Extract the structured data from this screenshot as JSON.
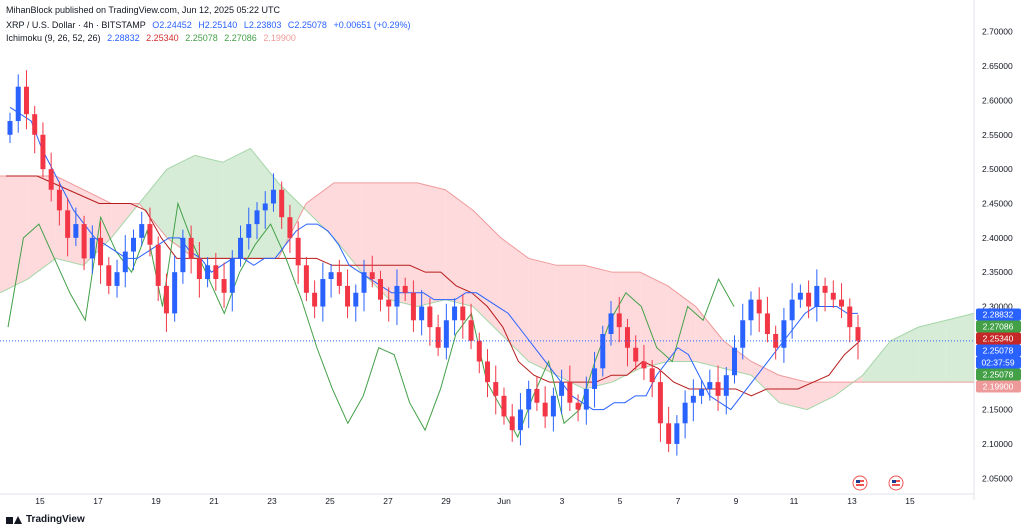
{
  "header": {
    "publisher_line": "MihanBlock published on TradingView.com, Jun 12, 2025 05:22 UTC"
  },
  "legend": {
    "symbol": "XRP / U.S. Dollar · 4h · BITSTAMP",
    "open": "O2.24452",
    "high": "H2.25140",
    "low": "L2.23803",
    "close": "C2.25078",
    "change": "+0.00651 (+0.29%)",
    "indicator": "Ichimoku (9, 26, 52, 26)",
    "ind_values": [
      "2.28832",
      "2.25340",
      "2.25078",
      "2.27086",
      "2.19900"
    ]
  },
  "footer": {
    "brand": "TradingView"
  },
  "colors": {
    "up": "#089981",
    "down": "#f23645",
    "tenkan": "#2962ff",
    "kijun": "#b71c1c",
    "chikou": "#43a047",
    "span_a": "#a5d6a7",
    "span_b": "#ef9a9a",
    "cloud_green": "#c8e6c9",
    "cloud_red": "#ffcdd2",
    "candle_red": "#f23645",
    "candle_blue": "#2962ff"
  },
  "price_labels": [
    {
      "value": 2.28832,
      "text": "2.28832",
      "color": "#2962ff"
    },
    {
      "value": 2.27086,
      "text": "2.27086",
      "color": "#43a047"
    },
    {
      "value": 2.2534,
      "text": "2.25340",
      "color": "#c62828"
    },
    {
      "value": 2.25078,
      "text": "2.25078",
      "color": "#2962ff"
    },
    {
      "value": 2.25078,
      "text": "02:37:59",
      "color": "#2962ff"
    },
    {
      "value": 2.25078,
      "text": "2.25078",
      "color": "#43a047"
    },
    {
      "value": 2.199,
      "text": "2.19900",
      "color": "#ef9a9a"
    }
  ],
  "chart_data": {
    "type": "candlestick",
    "title": "XRP / U.S. Dollar · 4h · BITSTAMP",
    "y_axis": {
      "ticks": [
        "2.05000",
        "2.10000",
        "2.15000",
        "2.20000",
        "2.25000",
        "2.30000",
        "2.35000",
        "2.40000",
        "2.45000",
        "2.50000",
        "2.55000",
        "2.60000",
        "2.65000",
        "2.70000"
      ],
      "ylim": [
        2.03,
        2.72
      ],
      "position": "right"
    },
    "x_axis": {
      "ticks": [
        "15",
        "17",
        "19",
        "21",
        "23",
        "25",
        "27",
        "29",
        "Jun",
        "3",
        "5",
        "7",
        "9",
        "11",
        "13",
        "15"
      ],
      "xlim": [
        0,
        16
      ]
    },
    "candles_close": [
      2.57,
      2.62,
      2.58,
      2.55,
      2.5,
      2.47,
      2.44,
      2.4,
      2.42,
      2.37,
      2.4,
      2.36,
      2.33,
      2.35,
      2.38,
      2.4,
      2.42,
      2.39,
      2.33,
      2.29,
      2.35,
      2.4,
      2.37,
      2.34,
      2.36,
      2.34,
      2.32,
      2.37,
      2.4,
      2.42,
      2.44,
      2.45,
      2.47,
      2.43,
      2.4,
      2.36,
      2.32,
      2.3,
      2.34,
      2.35,
      2.33,
      2.3,
      2.32,
      2.35,
      2.34,
      2.31,
      2.3,
      2.33,
      2.32,
      2.28,
      2.3,
      2.27,
      2.24,
      2.28,
      2.3,
      2.28,
      2.25,
      2.22,
      2.19,
      2.17,
      2.14,
      2.12,
      2.15,
      2.18,
      2.16,
      2.14,
      2.17,
      2.19,
      2.16,
      2.15,
      2.18,
      2.21,
      2.26,
      2.29,
      2.27,
      2.24,
      2.22,
      2.21,
      2.19,
      2.13,
      2.1,
      2.13,
      2.16,
      2.17,
      2.18,
      2.19,
      2.17,
      2.2,
      2.24,
      2.28,
      2.31,
      2.29,
      2.26,
      2.24,
      2.28,
      2.31,
      2.32,
      2.3,
      2.33,
      2.32,
      2.31,
      2.3,
      2.27,
      2.25
    ],
    "series": [
      {
        "name": "Tenkan",
        "values": [
          2.59,
          2.58,
          2.57,
          2.53,
          2.5,
          2.47,
          2.44,
          2.42,
          2.4,
          2.39,
          2.38,
          2.37,
          2.37,
          2.38,
          2.39,
          2.4,
          2.4,
          2.38,
          2.37,
          2.35,
          2.36,
          2.37,
          2.37,
          2.36,
          2.37,
          2.37,
          2.39,
          2.41,
          2.42,
          2.42,
          2.41,
          2.39,
          2.36,
          2.35,
          2.34,
          2.33,
          2.32,
          2.32,
          2.32,
          2.32,
          2.31,
          2.31,
          2.31,
          2.32,
          2.32,
          2.31,
          2.3,
          2.29,
          2.27,
          2.25,
          2.23,
          2.21,
          2.19,
          2.17,
          2.16,
          2.15,
          2.15,
          2.16,
          2.16,
          2.17,
          2.17,
          2.2,
          2.22,
          2.24,
          2.23,
          2.2,
          2.17,
          2.16,
          2.15,
          2.17,
          2.19,
          2.21,
          2.23,
          2.25,
          2.27,
          2.29,
          2.3,
          2.3,
          2.3,
          2.29,
          2.29
        ]
      },
      {
        "name": "Kijun",
        "values": [
          2.49,
          2.49,
          2.49,
          2.48,
          2.47,
          2.46,
          2.45,
          2.45,
          2.45,
          2.44,
          2.4,
          2.37,
          2.37,
          2.37,
          2.37,
          2.37,
          2.37,
          2.37,
          2.37,
          2.37,
          2.37,
          2.36,
          2.36,
          2.36,
          2.36,
          2.36,
          2.36,
          2.35,
          2.35,
          2.33,
          2.32,
          2.3,
          2.27,
          2.22,
          2.2,
          2.19,
          2.19,
          2.19,
          2.19,
          2.2,
          2.2,
          2.22,
          2.21,
          2.19,
          2.18,
          2.18,
          2.18,
          2.18,
          2.17,
          2.18,
          2.18,
          2.18,
          2.19,
          2.2,
          2.23,
          2.25
        ]
      },
      {
        "name": "Chikou",
        "values": [
          2.27,
          2.4,
          2.42,
          2.37,
          2.32,
          2.28,
          2.43,
          2.38,
          2.35,
          2.41,
          2.3,
          2.45,
          2.39,
          2.34,
          2.29,
          2.35,
          2.39,
          2.42,
          2.37,
          2.31,
          2.24,
          2.18,
          2.13,
          2.17,
          2.24,
          2.23,
          2.16,
          2.12,
          2.18,
          2.26,
          2.29,
          2.19,
          2.15,
          2.11,
          2.17,
          2.22,
          2.13,
          2.15,
          2.22,
          2.28,
          2.32,
          2.3,
          2.24,
          2.22,
          2.3,
          2.28,
          2.34,
          2.3
        ]
      },
      {
        "name": "Senkou Span A",
        "values": [
          2.32,
          2.34,
          2.37,
          2.36,
          2.4,
          2.45,
          2.5,
          2.52,
          2.51,
          2.53,
          2.48,
          2.44,
          2.4,
          2.35,
          2.31,
          2.3,
          2.31,
          2.3,
          2.26,
          2.22,
          2.2,
          2.18,
          2.19,
          2.21,
          2.22,
          2.22,
          2.21,
          2.2,
          2.16,
          2.15,
          2.17,
          2.2,
          2.25,
          2.27,
          2.28,
          2.29
        ]
      },
      {
        "name": "Senkou Span B",
        "values": [
          2.49,
          2.49,
          2.49,
          2.47,
          2.45,
          2.45,
          2.4,
          2.37,
          2.37,
          2.37,
          2.37,
          2.45,
          2.48,
          2.48,
          2.48,
          2.48,
          2.47,
          2.44,
          2.4,
          2.37,
          2.36,
          2.36,
          2.35,
          2.35,
          2.33,
          2.3,
          2.25,
          2.22,
          2.2,
          2.19,
          2.19,
          2.19,
          2.19,
          2.19,
          2.19,
          2.19,
          2.2,
          2.2
        ]
      }
    ]
  }
}
